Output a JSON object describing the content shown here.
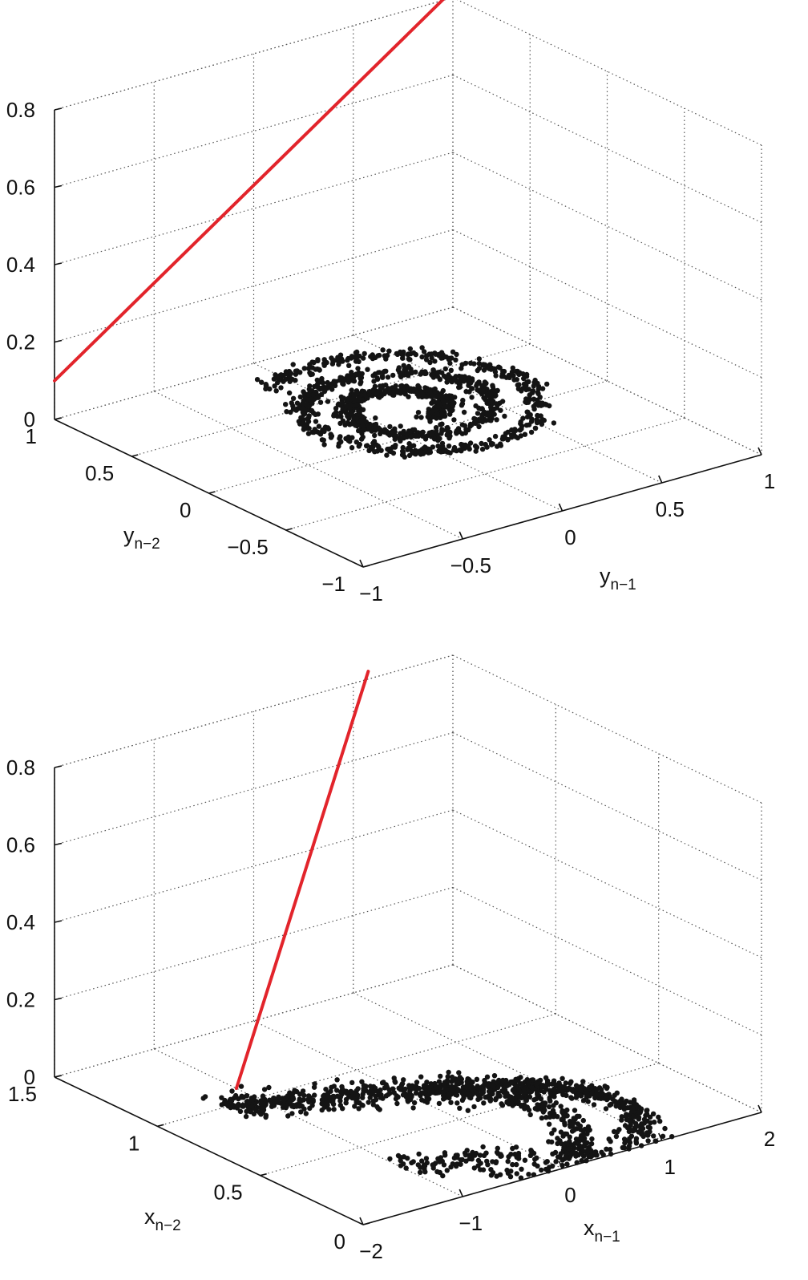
{
  "colors": {
    "points": "#141414",
    "line": "#e2242b",
    "axes": "#111111",
    "grid": "#555555"
  },
  "chart_data": [
    {
      "type": "scatter",
      "projection": "3d",
      "grid": true,
      "xaxis": {
        "name": "y",
        "sub": "n−1",
        "lim": [
          -1,
          1
        ],
        "ticks": [
          -1,
          -0.5,
          0,
          0.5,
          1
        ],
        "tick_labels": [
          "−1",
          "−0.5",
          "0",
          "0.5",
          "1"
        ]
      },
      "yaxis": {
        "name": "y",
        "sub": "n−2",
        "lim": [
          -1,
          1
        ],
        "ticks": [
          -1,
          -0.5,
          0,
          0.5,
          1
        ],
        "tick_labels": [
          "−1",
          "−0.5",
          "0",
          "0.5",
          "1"
        ]
      },
      "zaxis": {
        "lim": [
          0,
          0.8
        ],
        "ticks": [
          0,
          0.2,
          0.4,
          0.6,
          0.8
        ],
        "tick_labels": [
          "0",
          "0.2",
          "0.4",
          "0.6",
          "0.8"
        ]
      },
      "scatter_points": {
        "z": 0,
        "shape": "spiral (approx.)",
        "center": [
          0.2,
          0.25
        ],
        "start_angle_deg": -90,
        "turns": 2.6,
        "radius_start": 0.12,
        "radius_end": 0.6,
        "scatter": 0.03,
        "n": 1300
      },
      "line_series": {
        "color": "#e2242b",
        "points": [
          [
            -1,
            1,
            0.1
          ],
          [
            1,
            1,
            0.82
          ]
        ]
      }
    },
    {
      "type": "scatter",
      "projection": "3d",
      "grid": true,
      "xaxis": {
        "name": "x",
        "sub": "n−1",
        "lim": [
          -2,
          2
        ],
        "ticks": [
          -2,
          -1,
          0,
          1,
          2
        ],
        "tick_labels": [
          "−2",
          "−1",
          "0",
          "1",
          "2"
        ]
      },
      "yaxis": {
        "name": "x",
        "sub": "n−2",
        "lim": [
          0,
          1.5
        ],
        "ticks": [
          0,
          0.5,
          1,
          1.5
        ],
        "tick_labels": [
          "0",
          "0.5",
          "1",
          "1.5"
        ]
      },
      "zaxis": {
        "lim": [
          0,
          0.8
        ],
        "ticks": [
          0,
          0.2,
          0.4,
          0.6,
          0.8
        ],
        "tick_labels": [
          "0",
          "0.2",
          "0.4",
          "0.6",
          "0.8"
        ]
      },
      "scatter_points": {
        "z": 0,
        "shape": "Hénon-like attractor (approx.)",
        "map": "x_n = 1 − 1.4·x_{n−1}² + x_{n−2}",
        "n": 1300
      },
      "line_series": {
        "color": "#e2242b",
        "points": [
          [
            -1,
            1.1,
            0
          ],
          [
            1.15,
            1.5,
            0.82
          ]
        ]
      }
    }
  ]
}
